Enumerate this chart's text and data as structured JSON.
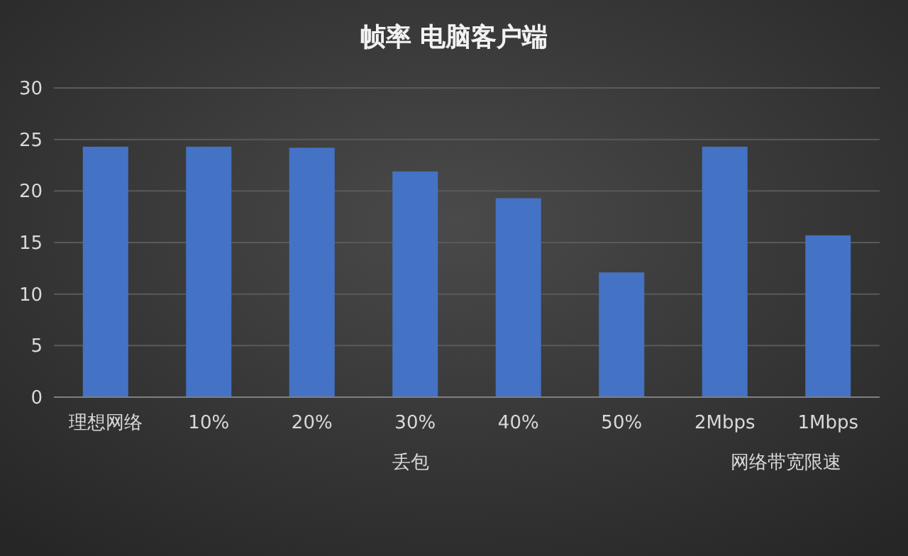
{
  "chart_data": {
    "type": "bar",
    "title": "帧率 电脑客户端",
    "categories": [
      "理想网络",
      "10%",
      "20%",
      "30%",
      "40%",
      "50%",
      "2Mbps",
      "1Mbps"
    ],
    "series": [
      {
        "color": "#4472c4",
        "values": [
          24.3,
          24.3,
          24.2,
          21.9,
          19.3,
          12.1,
          24.3,
          15.7
        ]
      }
    ],
    "ylim": [
      0,
      30
    ],
    "yticks": [
      0,
      5,
      10,
      15,
      20,
      25,
      30
    ],
    "grid": "y",
    "annotations": [
      "丢包",
      "网络带宽限速"
    ]
  }
}
